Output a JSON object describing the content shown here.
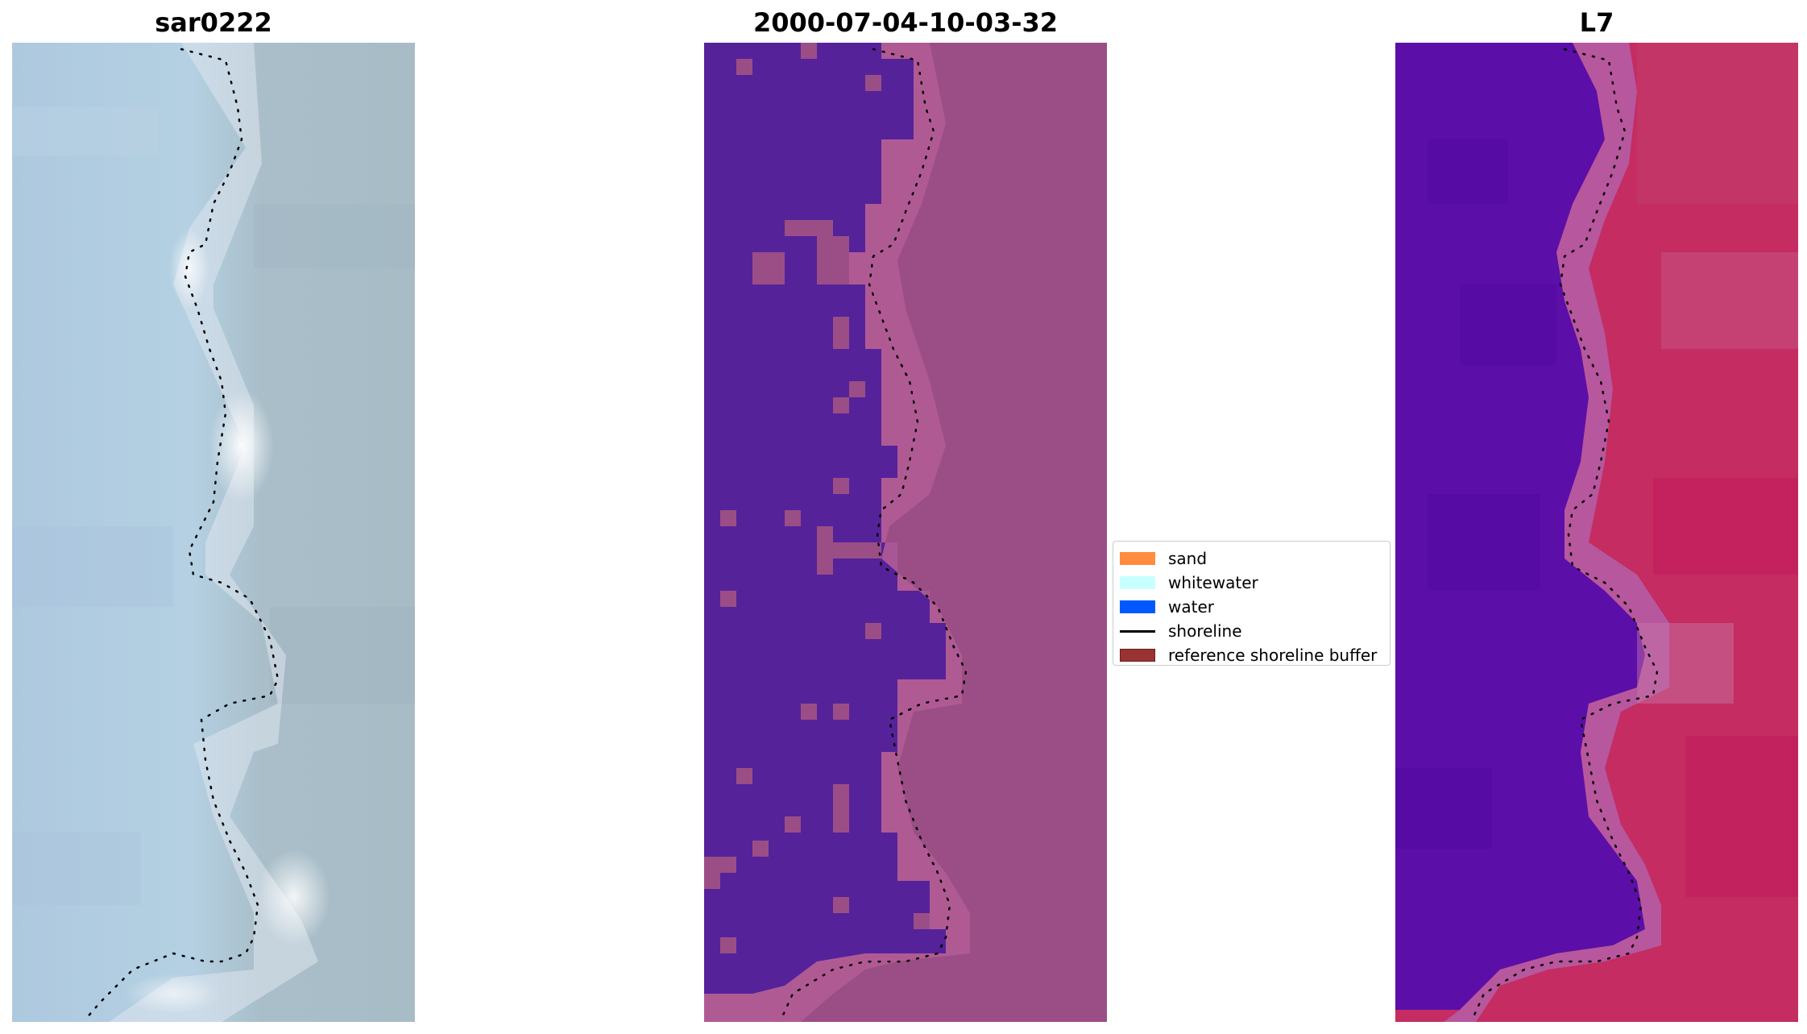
{
  "panels": [
    {
      "title": "sar0222"
    },
    {
      "title": "2000-07-04-10-03-32"
    },
    {
      "title": "L7"
    }
  ],
  "legend": {
    "items": [
      {
        "label": "sand",
        "color": "#ff8c3f",
        "kind": "patch"
      },
      {
        "label": "whitewater",
        "color": "#c8ffff",
        "kind": "patch"
      },
      {
        "label": "water",
        "color": "#0059ff",
        "kind": "patch"
      },
      {
        "label": "shoreline",
        "color": "#000000",
        "kind": "line"
      },
      {
        "label": "reference shoreline buffer",
        "color": "#993333",
        "kind": "patch"
      }
    ]
  },
  "colors": {
    "rgb_water": "#b0cce0",
    "rgb_land": "#a9bcc8",
    "rgb_whitewater": "#f2f6f8",
    "class_water": "#55229a",
    "class_land": "#9b4e86",
    "class_swash": "#b25c96",
    "nir_water": "#5e0aa8",
    "nir_swash": "#b7579e",
    "nir_land": "#c42c62"
  }
}
